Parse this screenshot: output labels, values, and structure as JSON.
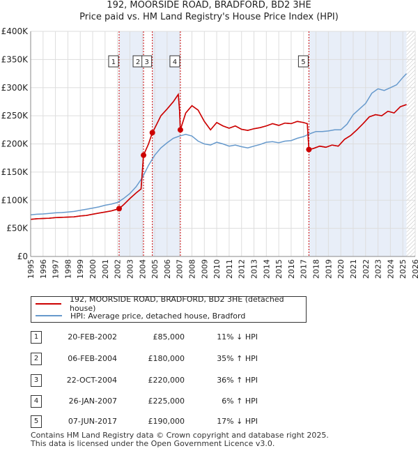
{
  "title_line1": "192, MOORSIDE ROAD, BRADFORD, BD2 3HE",
  "title_line2": "Price paid vs. HM Land Registry's House Price Index (HPI)",
  "chart_data": {
    "type": "line",
    "title": "192, MOORSIDE ROAD, BRADFORD, BD2 3HE — Price paid vs. HM Land Registry's House Price Index (HPI)",
    "xlim": [
      1995,
      2026
    ],
    "ylim": [
      0,
      400000
    ],
    "x_ticks": [
      "1995",
      "1996",
      "1997",
      "1998",
      "1999",
      "2000",
      "2001",
      "2002",
      "2003",
      "2004",
      "2005",
      "2006",
      "2007",
      "2008",
      "2009",
      "2010",
      "2011",
      "2012",
      "2013",
      "2014",
      "2015",
      "2016",
      "2017",
      "2018",
      "2019",
      "2020",
      "2021",
      "2022",
      "2023",
      "2024",
      "2025",
      "2026"
    ],
    "y_ticks": [
      {
        "value": 0,
        "label": "£0"
      },
      {
        "value": 50000,
        "label": "£50K"
      },
      {
        "value": 100000,
        "label": "£100K"
      },
      {
        "value": 150000,
        "label": "£150K"
      },
      {
        "value": 200000,
        "label": "£200K"
      },
      {
        "value": 250000,
        "label": "£250K"
      },
      {
        "value": 300000,
        "label": "£300K"
      },
      {
        "value": 350000,
        "label": "£350K"
      },
      {
        "value": 400000,
        "label": "£400K"
      }
    ],
    "grid": true,
    "series": [
      {
        "name": "192, MOORSIDE ROAD, BRADFORD, BD2 3HE (detached house)",
        "color": "#cc0000",
        "x": [
          1995.0,
          1995.5,
          1996.0,
          1996.5,
          1997.0,
          1997.5,
          1998.0,
          1998.5,
          1999.0,
          1999.5,
          2000.0,
          2000.5,
          2001.0,
          2001.5,
          2002.13,
          2002.13,
          2002.5,
          2003.0,
          2003.5,
          2003.9,
          2004.1,
          2004.1,
          2004.5,
          2004.81,
          2004.81,
          2005.0,
          2005.5,
          2006.0,
          2006.5,
          2006.9,
          2007.0,
          2007.07,
          2007.07,
          2007.5,
          2008.0,
          2008.5,
          2009.0,
          2009.5,
          2010.0,
          2010.5,
          2011.0,
          2011.5,
          2012.0,
          2012.5,
          2013.0,
          2013.5,
          2014.0,
          2014.5,
          2015.0,
          2015.5,
          2016.0,
          2016.5,
          2017.0,
          2017.3,
          2017.43,
          2017.43,
          2017.8,
          2018.3,
          2018.8,
          2019.3,
          2019.8,
          2020.3,
          2020.8,
          2021.3,
          2021.8,
          2022.3,
          2022.8,
          2023.3,
          2023.8,
          2024.3,
          2024.8,
          2025.3
        ],
        "values": [
          66000,
          67000,
          67500,
          68000,
          69000,
          69500,
          70000,
          70500,
          72000,
          73000,
          75000,
          77000,
          79000,
          81000,
          85000,
          85000,
          92000,
          103000,
          113000,
          120000,
          180000,
          180000,
          200000,
          220000,
          220000,
          228000,
          250000,
          262000,
          275000,
          288000,
          260000,
          225000,
          225000,
          255000,
          268000,
          260000,
          240000,
          225000,
          238000,
          232000,
          228000,
          232000,
          226000,
          224000,
          227000,
          229000,
          232000,
          236000,
          233000,
          237000,
          236000,
          240000,
          238000,
          236000,
          190000,
          190000,
          192000,
          196000,
          194000,
          198000,
          196000,
          208000,
          215000,
          225000,
          236000,
          248000,
          252000,
          250000,
          258000,
          255000,
          266000,
          270000
        ]
      },
      {
        "name": "HPI: Average price, detached house, Bradford",
        "color": "#6699cc",
        "x": [
          1995.0,
          1995.5,
          1996.0,
          1996.5,
          1997.0,
          1997.5,
          1998.0,
          1998.5,
          1999.0,
          1999.5,
          2000.0,
          2000.5,
          2001.0,
          2001.5,
          2002.0,
          2002.5,
          2003.0,
          2003.5,
          2004.0,
          2004.5,
          2005.0,
          2005.5,
          2006.0,
          2006.5,
          2007.0,
          2007.5,
          2008.0,
          2008.5,
          2009.0,
          2009.5,
          2010.0,
          2010.5,
          2011.0,
          2011.5,
          2012.0,
          2012.5,
          2013.0,
          2013.5,
          2014.0,
          2014.5,
          2015.0,
          2015.5,
          2016.0,
          2016.5,
          2017.0,
          2017.5,
          2018.0,
          2018.5,
          2019.0,
          2019.5,
          2020.0,
          2020.5,
          2021.0,
          2021.5,
          2022.0,
          2022.5,
          2023.0,
          2023.5,
          2024.0,
          2024.5,
          2025.0,
          2025.3
        ],
        "values": [
          74000,
          75000,
          75500,
          76500,
          77500,
          78000,
          79000,
          80000,
          82000,
          84000,
          86000,
          88000,
          91000,
          93000,
          96000,
          103000,
          112000,
          124000,
          140000,
          162000,
          180000,
          193000,
          202000,
          210000,
          214000,
          217000,
          214000,
          205000,
          200000,
          198000,
          203000,
          200000,
          196000,
          198000,
          195000,
          193000,
          196000,
          199000,
          203000,
          204000,
          202000,
          205000,
          206000,
          210000,
          213000,
          218000,
          222000,
          222000,
          223000,
          225000,
          225000,
          235000,
          252000,
          262000,
          272000,
          290000,
          298000,
          295000,
          300000,
          305000,
          318000,
          325000
        ]
      }
    ],
    "sales": [
      {
        "label": "1",
        "year": 2002.13,
        "price": 85000
      },
      {
        "label": "2",
        "year": 2004.1,
        "price": 180000
      },
      {
        "label": "3",
        "year": 2004.81,
        "price": 220000
      },
      {
        "label": "4",
        "year": 2007.07,
        "price": 225000
      },
      {
        "label": "5",
        "year": 2017.43,
        "price": 190000
      }
    ],
    "shaded_periods": [
      [
        2002.13,
        2004.1
      ],
      [
        2004.81,
        2007.07
      ],
      [
        2017.43,
        2025.3
      ]
    ],
    "forecast_start": 2025.3
  },
  "legend": {
    "property_label": "192, MOORSIDE ROAD, BRADFORD, BD2 3HE (detached house)",
    "hpi_label": "HPI: Average price, detached house, Bradford"
  },
  "transactions": [
    {
      "num": "1",
      "date": "20-FEB-2002",
      "price": "£85,000",
      "hpi": "11% ↓ HPI"
    },
    {
      "num": "2",
      "date": "06-FEB-2004",
      "price": "£180,000",
      "hpi": "35% ↑ HPI"
    },
    {
      "num": "3",
      "date": "22-OCT-2004",
      "price": "£220,000",
      "hpi": "36% ↑ HPI"
    },
    {
      "num": "4",
      "date": "26-JAN-2007",
      "price": "£225,000",
      "hpi": "6% ↑ HPI"
    },
    {
      "num": "5",
      "date": "07-JUN-2017",
      "price": "£190,000",
      "hpi": "17% ↓ HPI"
    }
  ],
  "footer_line1": "Contains HM Land Registry data © Crown copyright and database right 2025.",
  "footer_line2": "This data is licensed under the Open Government Licence v3.0."
}
